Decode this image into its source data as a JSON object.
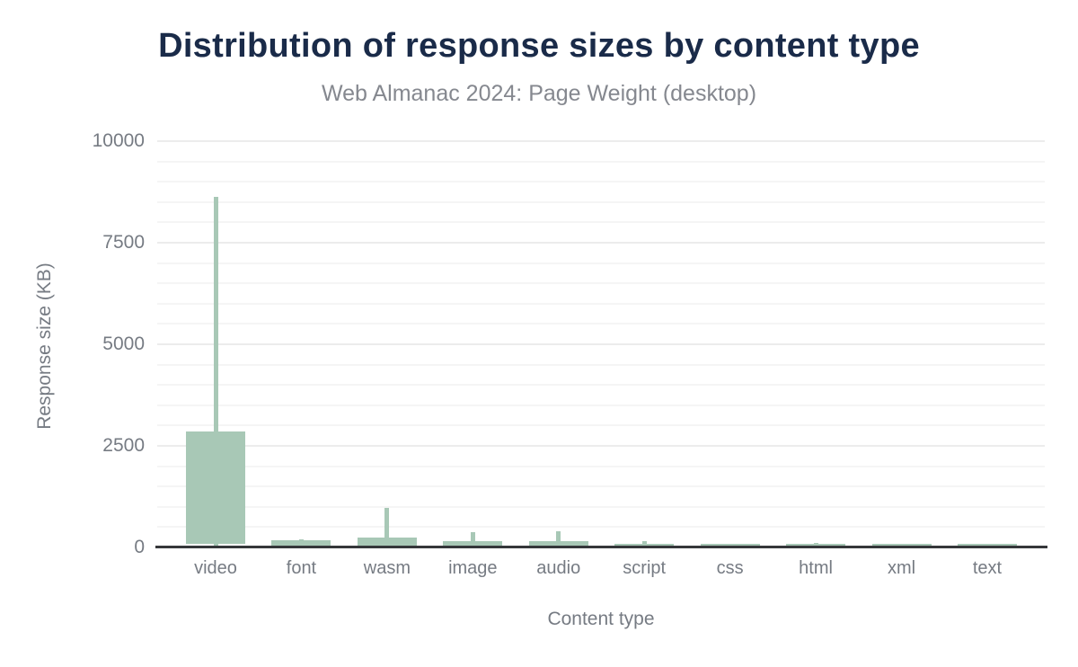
{
  "chart_data": {
    "type": "boxplot",
    "title": "Distribution of response sizes by content type",
    "subtitle": "Web Almanac 2024: Page Weight (desktop)",
    "xlabel": "Content type",
    "ylabel": "Response size (KB)",
    "unit": "KB",
    "ylim": [
      0,
      10000
    ],
    "yticks": [
      0,
      2500,
      5000,
      7500,
      10000
    ],
    "grid": {
      "minor_step": 500,
      "major_step": 2500
    },
    "legend": "none",
    "categories": [
      "video",
      "font",
      "wasm",
      "image",
      "audio",
      "script",
      "css",
      "html",
      "xml",
      "text"
    ],
    "boxes": [
      {
        "category": "video",
        "p10": 15,
        "p25": 90,
        "p75": 2860,
        "p90": 8630
      },
      {
        "category": "font",
        "p10": null,
        "p25": 0,
        "p75": 175,
        "p90": 195
      },
      {
        "category": "wasm",
        "p10": null,
        "p25": 0,
        "p75": 240,
        "p90": 970
      },
      {
        "category": "image",
        "p10": null,
        "p25": 0,
        "p75": 155,
        "p90": 375
      },
      {
        "category": "audio",
        "p10": null,
        "p25": 0,
        "p75": 155,
        "p90": 400
      },
      {
        "category": "script",
        "p10": null,
        "p25": 0,
        "p75": 90,
        "p90": 160
      },
      {
        "category": "css",
        "p10": null,
        "p25": 0,
        "p75": 80,
        "p90": 85
      },
      {
        "category": "html",
        "p10": null,
        "p25": 0,
        "p75": 85,
        "p90": 110
      },
      {
        "category": "xml",
        "p10": null,
        "p25": 0,
        "p75": 90,
        "p90": 95
      },
      {
        "category": "text",
        "p10": null,
        "p25": 0,
        "p75": 90,
        "p90": 95
      }
    ],
    "colors": {
      "box_fill": "#a8c8b6",
      "title": "#1a2b49",
      "subtitle": "#85888f",
      "axis_text": "#767b83",
      "axis_line": "#35373a",
      "grid_minor": "#f5f5f5",
      "grid_major": "#ececec",
      "background": "#ffffff"
    }
  }
}
